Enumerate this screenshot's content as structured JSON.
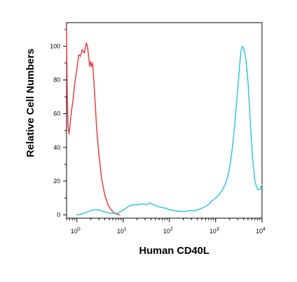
{
  "chart_data": {
    "type": "line",
    "xlabel": "Human CD40L",
    "ylabel": "Relative Cell Numbers",
    "x_scale": "log",
    "xlim": [
      0.6,
      10000
    ],
    "ylim": [
      -2,
      114
    ],
    "x_ticks": [
      {
        "value": 1,
        "base": "10",
        "exp": "0"
      },
      {
        "value": 10,
        "base": "10",
        "exp": "1"
      },
      {
        "value": 100,
        "base": "10",
        "exp": "2"
      },
      {
        "value": 1000,
        "base": "10",
        "exp": "3"
      },
      {
        "value": 10000,
        "base": "10",
        "exp": "4"
      }
    ],
    "y_ticks": [
      0,
      20,
      40,
      60,
      80,
      100
    ],
    "grid": false,
    "legend": "none",
    "series": [
      {
        "color": "#e8474b",
        "x": [
          0.6,
          0.62,
          0.65,
          0.68,
          0.72,
          0.77,
          0.83,
          0.9,
          1.0,
          1.1,
          1.2,
          1.3,
          1.45,
          1.6,
          1.7,
          1.8,
          1.9,
          2.0,
          2.1,
          2.2,
          2.35,
          2.5,
          2.7,
          3.0,
          3.4,
          4.0,
          4.7,
          5.5,
          6.5,
          7.5,
          8.5
        ],
        "y": [
          111,
          72,
          52,
          48,
          54,
          62,
          68,
          78,
          86,
          95,
          94,
          98,
          96,
          102,
          100,
          94,
          88,
          91,
          88,
          90,
          78,
          66,
          50,
          36,
          22,
          12,
          6,
          3,
          1,
          0.3,
          0
        ]
      },
      {
        "color": "#3fc6dc",
        "x": [
          1.0,
          1.3,
          1.6,
          2.0,
          2.5,
          3.0,
          3.6,
          4.3,
          5.2,
          6.3,
          7.5,
          9.0,
          11,
          14,
          18,
          22,
          27,
          32,
          38,
          45,
          55,
          65,
          80,
          100,
          130,
          170,
          220,
          280,
          350,
          420,
          500,
          600,
          700,
          800,
          900,
          1000,
          1200,
          1400,
          1600,
          1800,
          2000,
          2300,
          2600,
          2900,
          3200,
          3500,
          3800,
          4100,
          4500,
          5000,
          5600,
          6200,
          7000,
          8000,
          9000,
          10000
        ],
        "y": [
          0,
          0.5,
          1.5,
          2.5,
          3,
          3,
          2,
          1.5,
          1,
          0.8,
          1,
          2,
          3.5,
          5.5,
          6,
          6,
          6.5,
          6,
          7,
          6,
          5,
          4.5,
          4,
          3,
          2.5,
          2,
          2,
          2.5,
          2.5,
          3,
          4,
          5,
          6,
          8,
          9,
          10,
          12,
          15,
          18,
          22,
          28,
          40,
          55,
          70,
          85,
          97,
          100,
          98,
          92,
          78,
          55,
          35,
          20,
          15,
          15,
          18
        ]
      }
    ]
  }
}
